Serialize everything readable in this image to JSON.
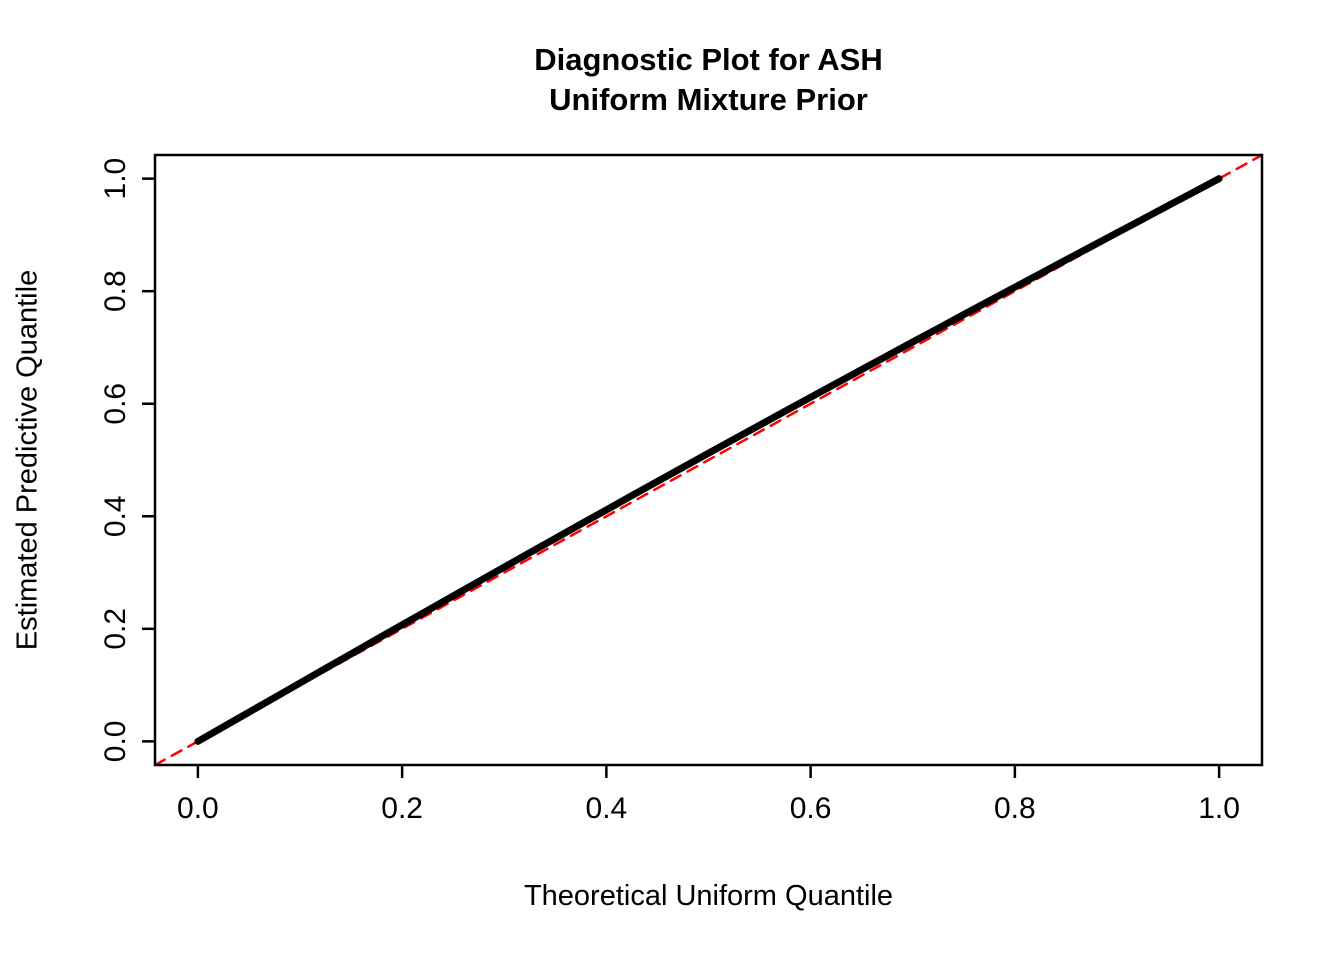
{
  "title_lines": [
    "Diagnostic Plot for ASH",
    "Uniform Mixture Prior"
  ],
  "colors": {
    "background": "#FFFFFF",
    "frame": "#000000",
    "points": "#000000",
    "reference_line": "#FF0000"
  },
  "chart_data": {
    "type": "scatter",
    "title": "Diagnostic Plot for ASH\nUniform Mixture Prior",
    "xlabel": "Theoretical Uniform Quantile",
    "ylabel": "Estimated Predictive Quantile",
    "xlim": [
      -0.042,
      1.042
    ],
    "ylim": [
      -0.042,
      1.042
    ],
    "grid": false,
    "legend": "none",
    "ticks": {
      "x": [
        0.0,
        0.2,
        0.4,
        0.6,
        0.8,
        1.0
      ],
      "x_labels": [
        "0.0",
        "0.2",
        "0.4",
        "0.6",
        "0.8",
        "1.0"
      ],
      "y": [
        0.0,
        0.2,
        0.4,
        0.6,
        0.8,
        1.0
      ],
      "y_labels": [
        "0.0",
        "0.2",
        "0.4",
        "0.6",
        "0.8",
        "1.0"
      ]
    },
    "series": [
      {
        "id": "reference-line-y-equals-x",
        "name": "y = x reference line",
        "color": "#FF0000",
        "width": 2.5,
        "dash": "11 8",
        "points": [
          [
            -0.042,
            -0.042
          ],
          [
            1.042,
            1.042
          ]
        ]
      },
      {
        "id": "estimated-quantile-points",
        "name": "Estimated predictive quantile vs theoretical uniform quantile",
        "color": "#000000",
        "width": 7,
        "dash": null,
        "points": [
          [
            0.0,
            0.0
          ],
          [
            0.025,
            0.0259
          ],
          [
            0.05,
            0.0519
          ],
          [
            0.075,
            0.0778
          ],
          [
            0.1,
            0.1037
          ],
          [
            0.125,
            0.1296
          ],
          [
            0.15,
            0.1554
          ],
          [
            0.175,
            0.1813
          ],
          [
            0.2,
            0.2071
          ],
          [
            0.225,
            0.2328
          ],
          [
            0.25,
            0.2585
          ],
          [
            0.275,
            0.2841
          ],
          [
            0.3,
            0.3097
          ],
          [
            0.325,
            0.3352
          ],
          [
            0.35,
            0.3607
          ],
          [
            0.375,
            0.3861
          ],
          [
            0.4,
            0.4114
          ],
          [
            0.425,
            0.4367
          ],
          [
            0.45,
            0.4619
          ],
          [
            0.475,
            0.487
          ],
          [
            0.5,
            0.512
          ],
          [
            0.525,
            0.537
          ],
          [
            0.55,
            0.5619
          ],
          [
            0.575,
            0.5867
          ],
          [
            0.6,
            0.6114
          ],
          [
            0.625,
            0.6361
          ],
          [
            0.65,
            0.6607
          ],
          [
            0.675,
            0.6852
          ],
          [
            0.7,
            0.7097
          ],
          [
            0.725,
            0.7341
          ],
          [
            0.75,
            0.7585
          ],
          [
            0.775,
            0.7828
          ],
          [
            0.8,
            0.8071
          ],
          [
            0.825,
            0.8313
          ],
          [
            0.85,
            0.8554
          ],
          [
            0.875,
            0.8796
          ],
          [
            0.9,
            0.9037
          ],
          [
            0.925,
            0.9278
          ],
          [
            0.95,
            0.9519
          ],
          [
            0.975,
            0.9759
          ],
          [
            1.0,
            1.0
          ]
        ]
      }
    ]
  }
}
